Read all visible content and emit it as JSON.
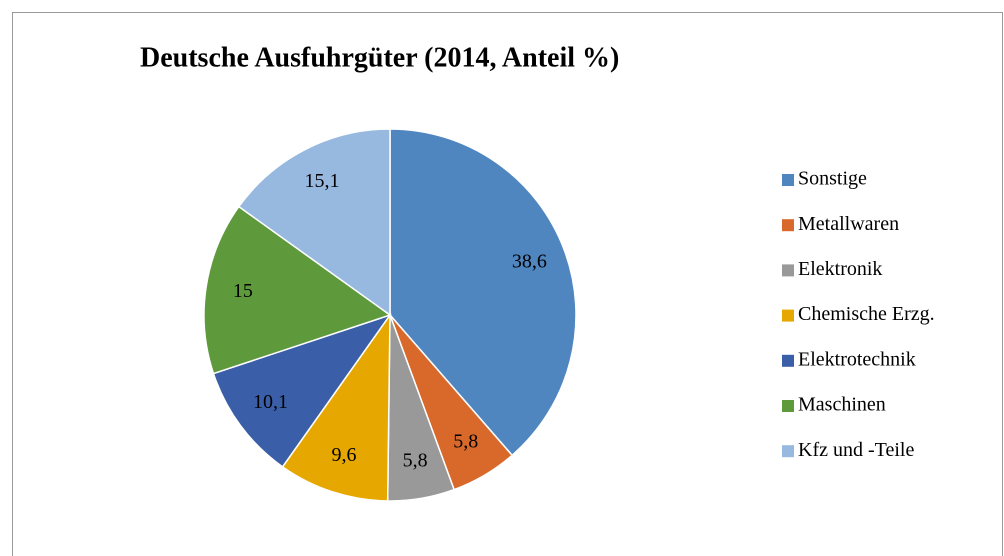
{
  "chart_data": {
    "type": "pie",
    "title": "Deutsche Ausfuhrgüter (2014, Anteil %)",
    "categories": [
      "Sonstige",
      "Metallwaren",
      "Elektronik",
      "Chemische Erzg.",
      "Elektrotechnik",
      "Maschinen",
      "Kfz und -Teile"
    ],
    "values": [
      38.6,
      5.8,
      5.8,
      9.6,
      10.1,
      15,
      15.1
    ],
    "value_labels": [
      "38,6",
      "5,8",
      "5,8",
      "9,6",
      "10,1",
      "15",
      "15,1"
    ],
    "colors": [
      "#4f86c0",
      "#d8692b",
      "#999999",
      "#e6a800",
      "#3a5fa8",
      "#5e9a3c",
      "#97b8df"
    ],
    "legend": "right"
  }
}
